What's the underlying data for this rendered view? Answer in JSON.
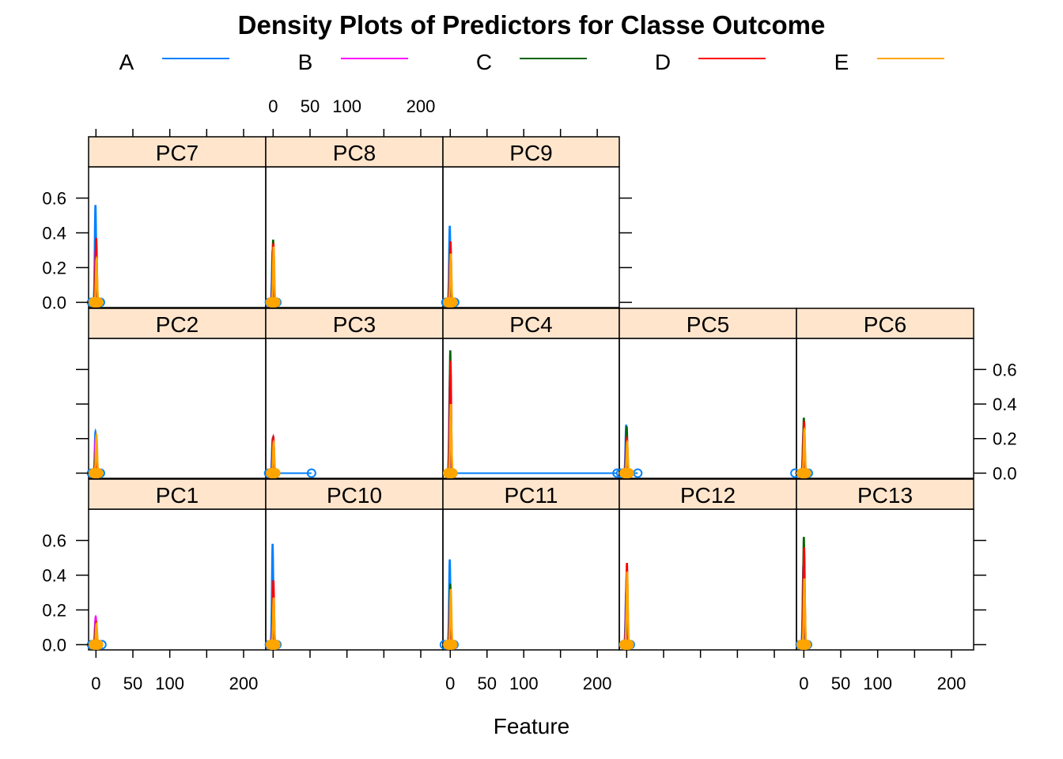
{
  "chart_data": {
    "type": "density-lattice",
    "title": "Density Plots of Predictors for Classe Outcome",
    "xlabel": "Feature",
    "ylabel": "",
    "xlim": [
      -10,
      230
    ],
    "ylim": [
      -0.03,
      0.78
    ],
    "x_ticks": [
      0,
      50,
      100,
      200
    ],
    "x_minor_ticks": [
      0,
      50,
      100,
      150,
      200
    ],
    "y_ticks": [
      0.0,
      0.2,
      0.4,
      0.6
    ],
    "x_tick_labels": [
      "0",
      "50",
      "100",
      "200"
    ],
    "y_tick_labels": [
      "0.0",
      "0.2",
      "0.4",
      "0.6"
    ],
    "legend": {
      "position": "top",
      "entries": [
        {
          "label": "A",
          "color": "#0080ff"
        },
        {
          "label": "B",
          "color": "#ff00ff"
        },
        {
          "label": "C",
          "color": "#006400"
        },
        {
          "label": "D",
          "color": "#ff0000"
        },
        {
          "label": "E",
          "color": "#ffa500"
        }
      ]
    },
    "strip_color": "#ffe5cc",
    "series_names": [
      "A",
      "B",
      "C",
      "D",
      "E"
    ],
    "panels": [
      {
        "name": "PC1",
        "row": 0,
        "col": 0,
        "peaks": [
          0.14,
          0.16,
          0.12,
          0.13,
          0.12
        ],
        "rug_min": -6,
        "rug_max": 8
      },
      {
        "name": "PC10",
        "row": 0,
        "col": 1,
        "peaks": [
          0.58,
          0.2,
          0.22,
          0.37,
          0.27
        ],
        "rug_min": -5,
        "rug_max": 5
      },
      {
        "name": "PC11",
        "row": 0,
        "col": 2,
        "peaks": [
          0.49,
          0.3,
          0.35,
          0.28,
          0.32
        ],
        "rug_min": -8,
        "rug_max": 5
      },
      {
        "name": "PC12",
        "row": 0,
        "col": 3,
        "peaks": [
          0.3,
          0.35,
          0.4,
          0.47,
          0.42
        ],
        "rug_min": -4,
        "rug_max": 5
      },
      {
        "name": "PC13",
        "row": 0,
        "col": 4,
        "peaks": [
          0.45,
          0.5,
          0.62,
          0.56,
          0.38
        ],
        "rug_min": -5,
        "rug_max": 5
      },
      {
        "name": "PC2",
        "row": 1,
        "col": 0,
        "peaks": [
          0.24,
          0.2,
          0.14,
          0.13,
          0.22
        ],
        "rug_min": -6,
        "rug_max": 6
      },
      {
        "name": "PC3",
        "row": 1,
        "col": 1,
        "peaks": [
          0.2,
          0.17,
          0.2,
          0.21,
          0.18
        ],
        "rug_min": -6,
        "rug_max": 52
      },
      {
        "name": "PC4",
        "row": 1,
        "col": 2,
        "peaks": [
          0.5,
          0.6,
          0.71,
          0.65,
          0.4
        ],
        "rug_min": -2,
        "rug_max": 227
      },
      {
        "name": "PC5",
        "row": 1,
        "col": 3,
        "peaks": [
          0.28,
          0.24,
          0.27,
          0.2,
          0.18
        ],
        "rug_min": -8,
        "rug_max": 15
      },
      {
        "name": "PC6",
        "row": 1,
        "col": 4,
        "peaks": [
          0.22,
          0.26,
          0.32,
          0.3,
          0.25
        ],
        "rug_min": -12,
        "rug_max": 6
      },
      {
        "name": "PC7",
        "row": 2,
        "col": 0,
        "peaks": [
          0.56,
          0.3,
          0.28,
          0.37,
          0.25
        ],
        "rug_min": -6,
        "rug_max": 6
      },
      {
        "name": "PC8",
        "row": 2,
        "col": 1,
        "peaks": [
          0.3,
          0.25,
          0.36,
          0.34,
          0.32
        ],
        "rug_min": -5,
        "rug_max": 5
      },
      {
        "name": "PC9",
        "row": 2,
        "col": 2,
        "peaks": [
          0.44,
          0.25,
          0.32,
          0.35,
          0.28
        ],
        "rug_min": -6,
        "rug_max": 6
      }
    ]
  }
}
